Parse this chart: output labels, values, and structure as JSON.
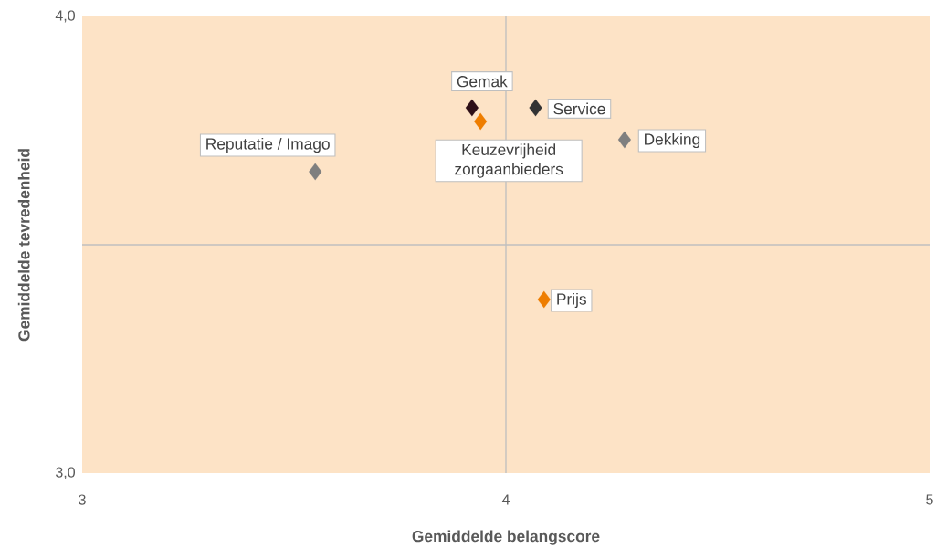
{
  "chart_data": {
    "type": "scatter",
    "xlabel": "Gemiddelde belangscore",
    "ylabel": "Gemiddelde tevredenheid",
    "xlim": [
      3,
      5
    ],
    "xticks": [
      3,
      4,
      5
    ],
    "ylim": [
      3,
      4
    ],
    "yticks": [
      {
        "value": 3,
        "label": "3,0"
      },
      {
        "value": 4,
        "label": "4,0"
      }
    ],
    "marker": "diamond",
    "grid": false,
    "ref_lines": [
      {
        "axis": "x",
        "value": 4,
        "color": "#bfbfbf"
      },
      {
        "axis": "y",
        "value": 3.5,
        "color": "#bfbfbf"
      }
    ],
    "series": [
      {
        "name": "Reputatie / Imago",
        "color": "#7f7f7f",
        "x": [
          3.55
        ],
        "values": [
          3.66
        ]
      },
      {
        "name": "Gemak",
        "color": "#2e0f17",
        "x": [
          3.92
        ],
        "values": [
          3.8
        ]
      },
      {
        "name": "Keuzevrijheid zorgaanbieders",
        "color": "#ee7d00",
        "x": [
          3.94
        ],
        "values": [
          3.77
        ]
      },
      {
        "name": "Service",
        "color": "#333333",
        "x": [
          4.07
        ],
        "values": [
          3.8
        ]
      },
      {
        "name": "Dekking",
        "color": "#7f7f7f",
        "x": [
          4.28
        ],
        "values": [
          3.73
        ]
      },
      {
        "name": "Prijs",
        "color": "#ee7d00",
        "x": [
          4.09
        ],
        "values": [
          3.38
        ]
      }
    ]
  }
}
